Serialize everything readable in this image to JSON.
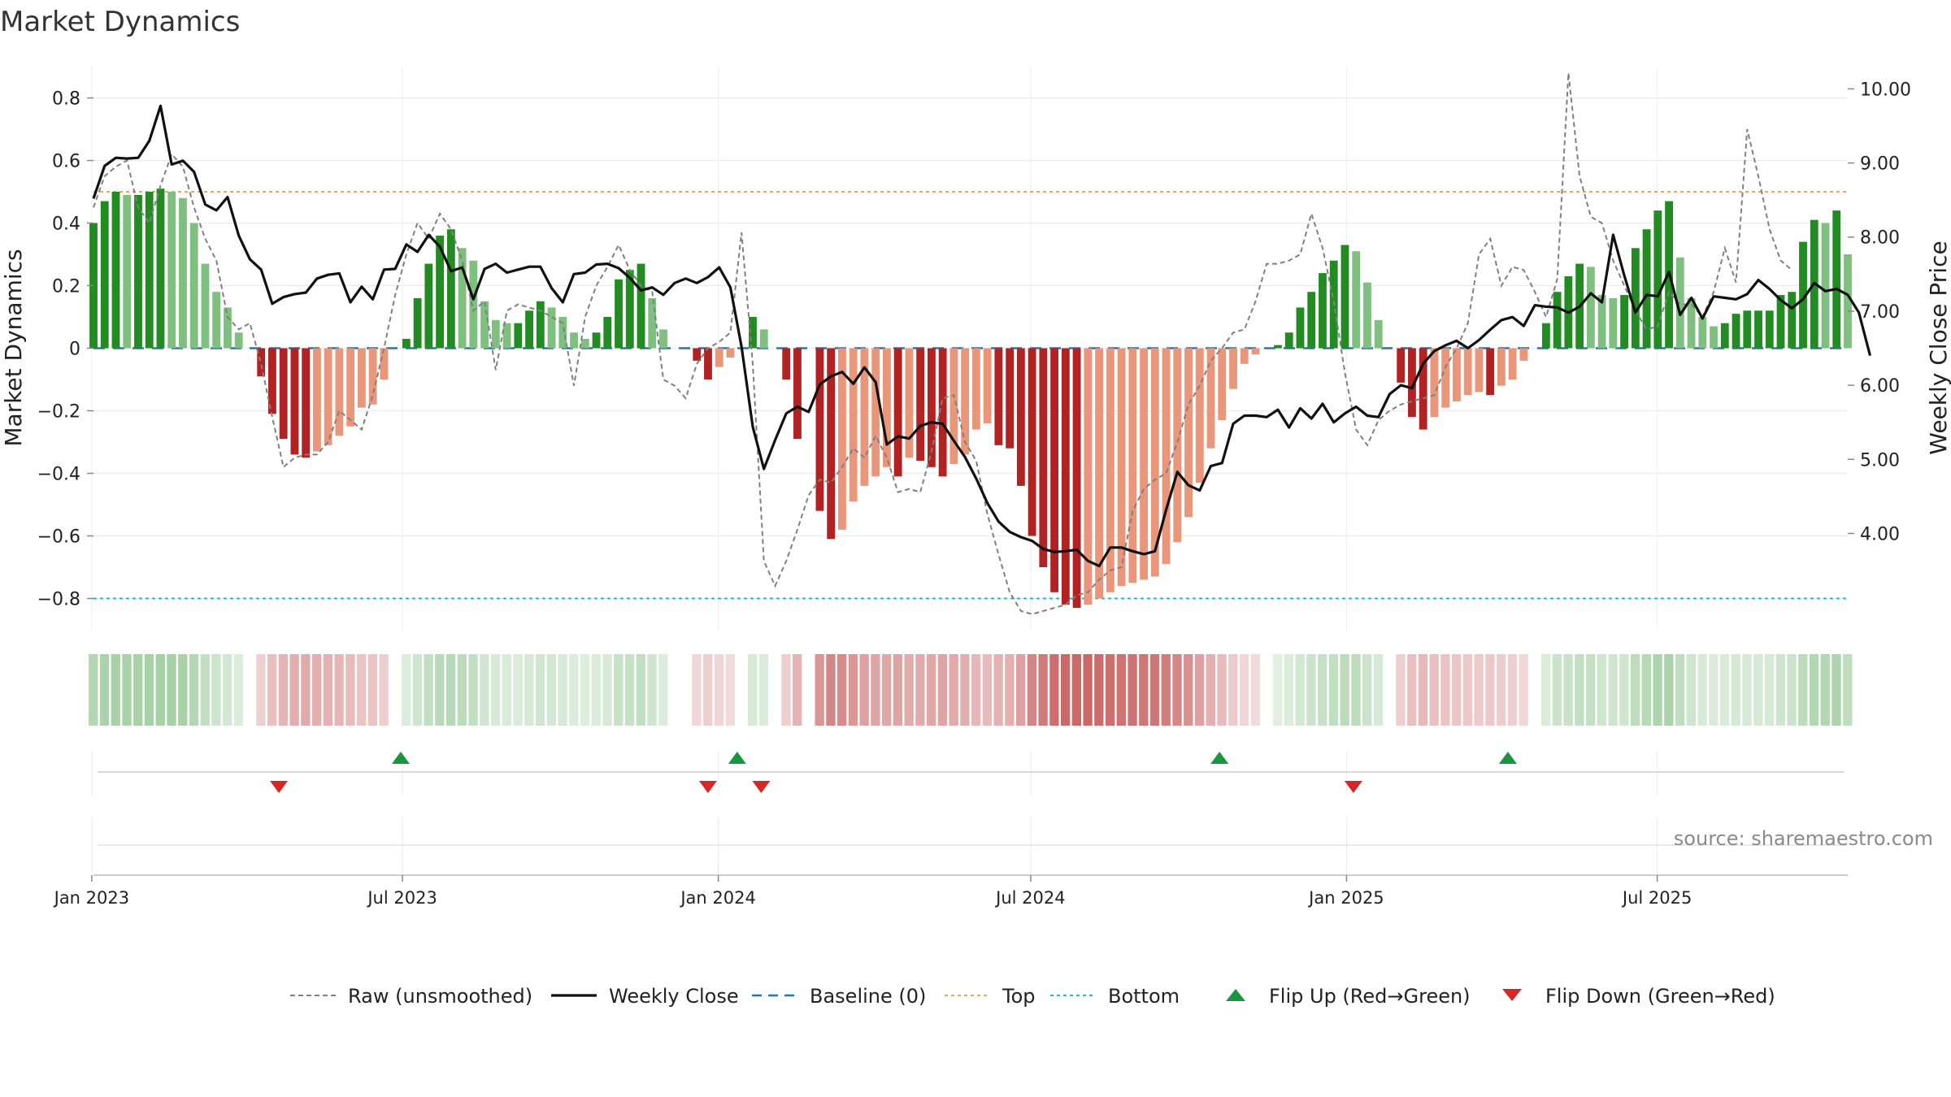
{
  "chart_data": {
    "type": "bar",
    "title": "Market Dynamics",
    "ylabel_left": "Market Dynamics",
    "ylabel_right": "Weekly Close Price",
    "ylim_left": [
      -0.9,
      0.9
    ],
    "ylim_right": [
      2.7,
      10.3
    ],
    "yticks_left": [
      0.8,
      0.6,
      0.4,
      0.2,
      0,
      -0.2,
      -0.4,
      -0.6,
      -0.8
    ],
    "yticks_left_labels": [
      "0.8",
      "0.6",
      "0.4",
      "0.2",
      "0",
      "−0.2",
      "−0.4",
      "−0.6",
      "−0.8"
    ],
    "yticks_right": [
      10,
      9,
      8,
      7,
      6,
      5,
      4
    ],
    "yticks_right_labels": [
      "10.00",
      "9.00",
      "8.00",
      "7.00",
      "6.00",
      "5.00",
      "4.00"
    ],
    "x_start": "2023-01-02",
    "x_end": "2025-10-20",
    "date_ticks": [
      {
        "date": "2023-01-01",
        "label": "Jan 2023"
      },
      {
        "date": "2023-07-01",
        "label": "Jul 2023"
      },
      {
        "date": "2024-01-01",
        "label": "Jan 2024"
      },
      {
        "date": "2024-07-01",
        "label": "Jul 2024"
      },
      {
        "date": "2025-01-01",
        "label": "Jan 2025"
      },
      {
        "date": "2025-07-01",
        "label": "Jul 2025"
      }
    ],
    "top_line": 0.5,
    "bottom_line": -0.8,
    "baseline": 0,
    "series": [
      {
        "name": "Market Dynamics (smoothed)",
        "values": [
          0.4,
          0.47,
          0.5,
          0.49,
          0.49,
          0.5,
          0.51,
          0.5,
          0.48,
          0.4,
          0.27,
          0.18,
          0.13,
          0.05,
          0,
          -0.09,
          -0.21,
          -0.29,
          -0.34,
          -0.35,
          -0.33,
          -0.31,
          -0.28,
          -0.25,
          -0.19,
          -0.18,
          -0.1,
          0,
          0.03,
          0.16,
          0.27,
          0.36,
          0.38,
          0.32,
          0.28,
          0.15,
          0.09,
          0.08,
          0.08,
          0.12,
          0.15,
          0.13,
          0.1,
          0.05,
          0.03,
          0.05,
          0.1,
          0.22,
          0.25,
          0.27,
          0.16,
          0.06,
          0,
          0,
          -0.04,
          -0.1,
          -0.06,
          -0.03,
          0,
          0.1,
          0.06,
          0,
          -0.1,
          -0.29,
          0,
          -0.52,
          -0.61,
          -0.58,
          -0.49,
          -0.44,
          -0.41,
          -0.38,
          -0.41,
          -0.35,
          -0.36,
          -0.38,
          -0.41,
          -0.37,
          -0.34,
          -0.26,
          -0.24,
          -0.31,
          -0.32,
          -0.44,
          -0.6,
          -0.7,
          -0.78,
          -0.82,
          -0.83,
          -0.82,
          -0.8,
          -0.78,
          -0.76,
          -0.75,
          -0.74,
          -0.73,
          -0.69,
          -0.62,
          -0.54,
          -0.43,
          -0.32,
          -0.23,
          -0.13,
          -0.05,
          -0.02,
          0,
          0.01,
          0.05,
          0.13,
          0.18,
          0.24,
          0.28,
          0.33,
          0.31,
          0.21,
          0.09,
          0,
          -0.11,
          -0.22,
          -0.26,
          -0.22,
          -0.19,
          -0.17,
          -0.15,
          -0.14,
          -0.15,
          -0.12,
          -0.1,
          -0.04,
          0,
          0.08,
          0.18,
          0.23,
          0.27,
          0.26,
          0.17,
          0.16,
          0.17,
          0.32,
          0.38,
          0.44,
          0.47,
          0.29,
          0.16,
          0.1,
          0.07,
          0.08,
          0.11,
          0.12,
          0.12,
          0.12,
          0.17,
          0.18,
          0.34,
          0.41,
          0.4,
          0.44,
          0.3
        ]
      },
      {
        "name": "Raw (unsmoothed)",
        "values": [
          0.45,
          0.55,
          0.58,
          0.6,
          0.45,
          0.4,
          0.52,
          0.62,
          0.58,
          0.45,
          0.35,
          0.28,
          0.1,
          0.06,
          0.08,
          -0.05,
          -0.22,
          -0.38,
          -0.35,
          -0.34,
          -0.34,
          -0.3,
          -0.2,
          -0.23,
          -0.26,
          -0.15,
          0,
          0.17,
          0.3,
          0.4,
          0.35,
          0.43,
          0.38,
          0.28,
          0.12,
          0.15,
          -0.07,
          0.12,
          0.14,
          0.13,
          0.12,
          0.1,
          0.08,
          -0.12,
          0.1,
          0.2,
          0.26,
          0.33,
          0.25,
          0.2,
          0.18,
          -0.1,
          -0.12,
          -0.16,
          -0.05,
          0,
          0.02,
          0.05,
          0.37,
          -0.05,
          -0.68,
          -0.76,
          -0.68,
          -0.58,
          -0.47,
          -0.42,
          -0.43,
          -0.38,
          -0.32,
          -0.35,
          -0.28,
          -0.35,
          -0.46,
          -0.45,
          -0.46,
          -0.33,
          -0.16,
          -0.15,
          -0.3,
          -0.36,
          -0.53,
          -0.66,
          -0.78,
          -0.84,
          -0.85,
          -0.84,
          -0.83,
          -0.82,
          -0.79,
          -0.78,
          -0.74,
          -0.71,
          -0.7,
          -0.52,
          -0.45,
          -0.42,
          -0.4,
          -0.3,
          -0.18,
          -0.12,
          -0.04,
          0,
          0.05,
          0.06,
          0.15,
          0.27,
          0.27,
          0.28,
          0.3,
          0.43,
          0.32,
          0.15,
          -0.08,
          -0.26,
          -0.31,
          -0.23,
          -0.2,
          -0.18,
          -0.17,
          -0.16,
          -0.15,
          -0.06,
          0,
          0.08,
          0.3,
          0.35,
          0.2,
          0.26,
          0.25,
          0.18,
          0.1,
          0.22,
          0.88,
          0.55,
          0.42,
          0.4,
          0.28,
          0.2,
          0.12,
          0.06,
          0.07,
          0.18,
          0.14,
          0.14,
          0.1,
          0.18,
          0.32,
          0.21,
          0.7,
          0.55,
          0.38,
          0.28,
          0.25
        ]
      },
      {
        "name": "Weekly Close",
        "values": [
          8.52,
          8.96,
          9.07,
          9.06,
          9.07,
          9.3,
          9.77,
          8.98,
          9.03,
          8.88,
          8.44,
          8.36,
          8.54,
          8.02,
          7.7,
          7.56,
          7.1,
          7.19,
          7.23,
          7.25,
          7.44,
          7.49,
          7.51,
          7.12,
          7.33,
          7.16,
          7.56,
          7.57,
          7.9,
          7.8,
          8.03,
          7.87,
          7.54,
          7.59,
          7.16,
          7.57,
          7.64,
          7.52,
          7.56,
          7.6,
          7.6,
          7.31,
          7.12,
          7.5,
          7.52,
          7.63,
          7.64,
          7.58,
          7.45,
          7.28,
          7.32,
          7.22,
          7.38,
          7.44,
          7.38,
          7.46,
          7.59,
          7.32,
          6.52,
          5.44,
          4.87,
          5.26,
          5.62,
          5.71,
          5.64,
          6.01,
          6.12,
          6.18,
          6.02,
          6.24,
          6.04,
          5.2,
          5.31,
          5.28,
          5.45,
          5.5,
          5.48,
          5.25,
          5.03,
          4.74,
          4.41,
          4.16,
          4.02,
          3.95,
          3.9,
          3.79,
          3.75,
          3.76,
          3.78,
          3.63,
          3.56,
          3.81,
          3.81,
          3.76,
          3.72,
          3.76,
          4.32,
          4.83,
          4.65,
          4.58,
          4.91,
          4.95,
          5.48,
          5.59,
          5.59,
          5.57,
          5.67,
          5.43,
          5.69,
          5.55,
          5.75,
          5.5,
          5.62,
          5.71,
          5.59,
          5.57,
          5.88,
          6.0,
          5.96,
          6.29,
          6.46,
          6.54,
          6.6,
          6.5,
          6.61,
          6.75,
          6.88,
          6.92,
          6.8,
          7.08,
          7.06,
          7.05,
          6.98,
          7.06,
          7.24,
          7.12,
          8.03,
          7.48,
          6.98,
          7.22,
          7.2,
          7.53,
          6.95,
          7.18,
          6.9,
          7.2,
          7.18,
          7.16,
          7.23,
          7.42,
          7.3,
          7.15,
          7.04,
          7.16,
          7.38,
          7.27,
          7.3,
          7.22,
          6.98,
          6.4
        ]
      }
    ],
    "flips_up": [
      "2023-06-30",
      "2024-01-12",
      "2024-10-19",
      "2025-04-05"
    ],
    "flips_down": [
      "2023-04-20",
      "2023-12-26",
      "2024-01-26",
      "2025-01-05"
    ],
    "source": "source: sharemaestro.com",
    "legend": [
      {
        "label": "Raw (unsmoothed)",
        "style": "dashed-gray"
      },
      {
        "label": "Weekly Close",
        "style": "solid-black"
      },
      {
        "label": "Baseline (0)",
        "style": "dashed-blue"
      },
      {
        "label": "Top",
        "style": "dashed-orange"
      },
      {
        "label": "Bottom",
        "style": "dashed-cyan"
      },
      {
        "label": "Flip Up (Red→Green)",
        "style": "triangle-up-green"
      },
      {
        "label": "Flip Down (Green→Red)",
        "style": "triangle-down-red"
      }
    ],
    "colors": {
      "up_strong": "#228b22",
      "up_weak": "#7fbf7f",
      "down_strong": "#b22222",
      "down_weak": "#e9967a",
      "raw": "#808080",
      "close": "#111111",
      "baseline": "#1f77b4",
      "top": "#f4a460",
      "bottom": "#17becf",
      "flip_up": "#1a9641",
      "flip_down": "#d62728"
    },
    "grid": true
  }
}
